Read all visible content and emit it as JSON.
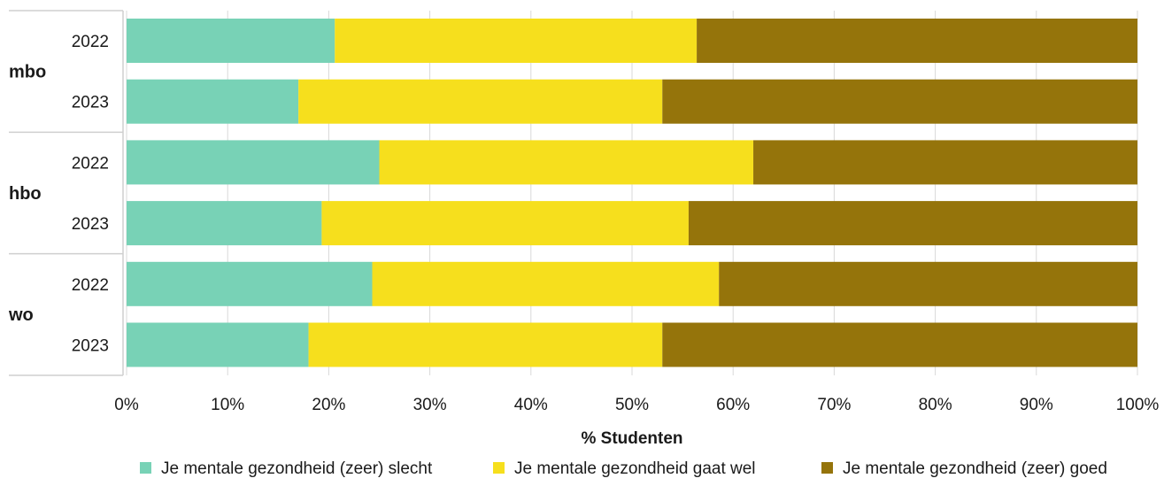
{
  "chart_data": {
    "type": "bar",
    "orientation": "horizontal",
    "stacked": true,
    "title": "",
    "xlabel": "% Studenten",
    "ylabel": "",
    "xlim": [
      0,
      100
    ],
    "x_ticks": [
      "0%",
      "10%",
      "20%",
      "30%",
      "40%",
      "50%",
      "60%",
      "70%",
      "80%",
      "90%",
      "100%"
    ],
    "grid": "vertical",
    "legend_position": "bottom",
    "groups": [
      {
        "label": "mbo",
        "categories": [
          "2022",
          "2023"
        ]
      },
      {
        "label": "hbo",
        "categories": [
          "2022",
          "2023"
        ]
      },
      {
        "label": "wo",
        "categories": [
          "2022",
          "2023"
        ]
      }
    ],
    "series": [
      {
        "name": "Je mentale gezondheid (zeer) slecht",
        "color": "#78D2B6",
        "values": [
          20.6,
          17.0,
          25.0,
          19.3,
          24.3,
          18.0
        ]
      },
      {
        "name": "Je mentale gezondheid gaat wel",
        "color": "#F6DF1D",
        "values": [
          35.8,
          36.0,
          37.0,
          36.3,
          34.3,
          35.0
        ]
      },
      {
        "name": "Je mentale gezondheid (zeer) goed",
        "color": "#95740B",
        "values": [
          43.6,
          47.0,
          38.0,
          44.4,
          41.4,
          47.0
        ]
      }
    ]
  }
}
